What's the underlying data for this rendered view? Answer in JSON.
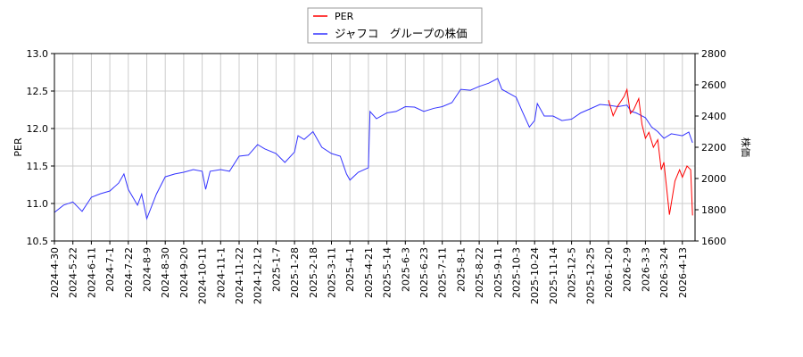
{
  "chart_data": {
    "type": "line",
    "legend": {
      "placement": "top-center",
      "entries": [
        "PER",
        "ジャフコ　グループの株価"
      ]
    },
    "ylabel_left": "PER",
    "ylabel_right": "株価",
    "ylim_left": [
      10.5,
      13.0
    ],
    "yticks_left": [
      "10.5",
      "11.0",
      "11.5",
      "12.0",
      "12.5",
      "13.0"
    ],
    "ylim_right": [
      1600,
      2800
    ],
    "yticks_right": [
      "1600",
      "1800",
      "2000",
      "2200",
      "2400",
      "2600",
      "2800"
    ],
    "grid": true,
    "xticks": [
      "2024-4-30",
      "2024-5-22",
      "2024-6-11",
      "2024-7-1",
      "2024-7-22",
      "2024-8-9",
      "2024-8-30",
      "2024-9-20",
      "2024-10-11",
      "2024-11-1",
      "2024-11-22",
      "2024-12-12",
      "2025-1-7",
      "2025-1-28",
      "2025-2-18",
      "2025-3-11",
      "2025-4-1",
      "2025-4-21",
      "2025-5-14",
      "2025-6-3",
      "2025-6-23",
      "2025-7-11",
      "2025-8-1",
      "2025-8-22",
      "2025-9-11",
      "2025-10-3",
      "2025-10-24",
      "2025-11-14",
      "2025-12-5",
      "2025-12-25",
      "2026-1-20",
      "2026-2-9",
      "2026-3-3",
      "2026-3-24",
      "2026-4-13"
    ],
    "series": [
      {
        "name": "PER",
        "axis": "left",
        "color": "#ff0000",
        "points": [
          [
            "2026-1-20",
            12.38
          ],
          [
            "2026-1-25",
            12.17
          ],
          [
            "2026-1-30",
            12.3
          ],
          [
            "2026-2-6",
            12.43
          ],
          [
            "2026-2-9",
            12.52
          ],
          [
            "2026-2-13",
            12.2
          ],
          [
            "2026-2-17",
            12.25
          ],
          [
            "2026-2-23",
            12.4
          ],
          [
            "2026-2-27",
            12.05
          ],
          [
            "2026-3-3",
            11.87
          ],
          [
            "2026-3-7",
            11.95
          ],
          [
            "2026-3-12",
            11.75
          ],
          [
            "2026-3-17",
            11.85
          ],
          [
            "2026-3-21",
            11.45
          ],
          [
            "2026-3-24",
            11.55
          ],
          [
            "2026-3-30",
            10.85
          ],
          [
            "2026-4-5",
            11.3
          ],
          [
            "2026-4-10",
            11.45
          ],
          [
            "2026-4-13",
            11.35
          ],
          [
            "2026-4-18",
            11.5
          ],
          [
            "2026-4-22",
            11.45
          ],
          [
            "2026-4-24",
            10.84
          ]
        ]
      },
      {
        "name": "ジャフコ　グループの株価",
        "axis": "right",
        "color": "#3333ff",
        "points": [
          [
            "2024-4-30",
            1783
          ],
          [
            "2024-5-11",
            1830
          ],
          [
            "2024-5-22",
            1850
          ],
          [
            "2024-6-1",
            1790
          ],
          [
            "2024-6-11",
            1880
          ],
          [
            "2024-6-21",
            1903
          ],
          [
            "2024-7-1",
            1920
          ],
          [
            "2024-7-11",
            1971
          ],
          [
            "2024-7-17",
            2029
          ],
          [
            "2024-7-22",
            1930
          ],
          [
            "2024-7-31",
            1829
          ],
          [
            "2024-8-4",
            1900
          ],
          [
            "2024-8-9",
            1743
          ],
          [
            "2024-8-20",
            1900
          ],
          [
            "2024-8-30",
            2011
          ],
          [
            "2024-9-10",
            2029
          ],
          [
            "2024-9-20",
            2040
          ],
          [
            "2024-10-1",
            2057
          ],
          [
            "2024-10-11",
            2046
          ],
          [
            "2024-10-15",
            1931
          ],
          [
            "2024-10-20",
            2046
          ],
          [
            "2024-11-1",
            2057
          ],
          [
            "2024-11-11",
            2046
          ],
          [
            "2024-11-22",
            2143
          ],
          [
            "2024-12-2",
            2150
          ],
          [
            "2024-12-12",
            2217
          ],
          [
            "2024-12-22",
            2190
          ],
          [
            "2025-1-7",
            2160
          ],
          [
            "2025-1-17",
            2103
          ],
          [
            "2025-1-28",
            2170
          ],
          [
            "2025-2-1",
            2274
          ],
          [
            "2025-2-8",
            2250
          ],
          [
            "2025-2-18",
            2300
          ],
          [
            "2025-2-28",
            2200
          ],
          [
            "2025-3-11",
            2160
          ],
          [
            "2025-3-21",
            2143
          ],
          [
            "2025-3-28",
            2030
          ],
          [
            "2025-4-1",
            1990
          ],
          [
            "2025-4-10",
            2040
          ],
          [
            "2025-4-21",
            2069
          ],
          [
            "2025-4-23",
            2429
          ],
          [
            "2025-5-1",
            2383
          ],
          [
            "2025-5-14",
            2420
          ],
          [
            "2025-5-24",
            2429
          ],
          [
            "2025-6-3",
            2460
          ],
          [
            "2025-6-13",
            2457
          ],
          [
            "2025-6-23",
            2430
          ],
          [
            "2025-7-3",
            2450
          ],
          [
            "2025-7-11",
            2460
          ],
          [
            "2025-7-22",
            2486
          ],
          [
            "2025-8-1",
            2571
          ],
          [
            "2025-8-12",
            2565
          ],
          [
            "2025-8-22",
            2590
          ],
          [
            "2025-9-1",
            2610
          ],
          [
            "2025-9-11",
            2640
          ],
          [
            "2025-9-16",
            2571
          ],
          [
            "2025-10-3",
            2520
          ],
          [
            "2025-10-10",
            2429
          ],
          [
            "2025-10-18",
            2330
          ],
          [
            "2025-10-24",
            2371
          ],
          [
            "2025-10-27",
            2480
          ],
          [
            "2025-11-4",
            2400
          ],
          [
            "2025-11-14",
            2400
          ],
          [
            "2025-11-24",
            2371
          ],
          [
            "2025-12-5",
            2380
          ],
          [
            "2025-12-15",
            2420
          ],
          [
            "2025-12-25",
            2446
          ],
          [
            "2026-1-8",
            2474
          ],
          [
            "2026-1-20",
            2469
          ],
          [
            "2026-1-30",
            2460
          ],
          [
            "2026-2-9",
            2470
          ],
          [
            "2026-2-14",
            2429
          ],
          [
            "2026-2-20",
            2420
          ],
          [
            "2026-3-3",
            2389
          ],
          [
            "2026-3-10",
            2330
          ],
          [
            "2026-3-17",
            2300
          ],
          [
            "2026-3-24",
            2257
          ],
          [
            "2026-4-1",
            2286
          ],
          [
            "2026-4-13",
            2274
          ],
          [
            "2026-4-20",
            2297
          ],
          [
            "2026-4-24",
            2229
          ]
        ]
      }
    ]
  }
}
